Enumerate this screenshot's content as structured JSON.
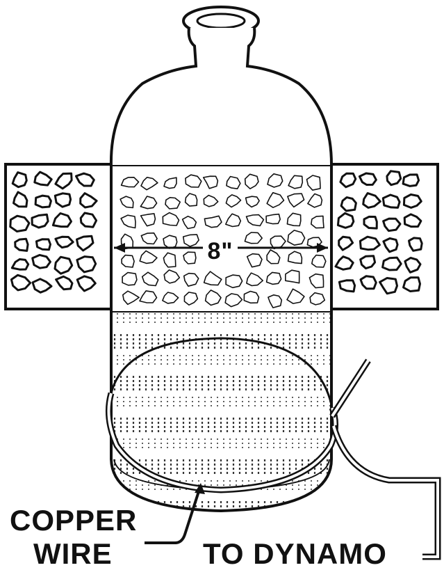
{
  "diagram": {
    "dimension_label": "8\"",
    "labels": {
      "copper_line1": "COPPER",
      "copper_line2": "WIRE",
      "dynamo": "TO DYNAMO"
    }
  },
  "colors": {
    "ink": "#111111",
    "paper": "#ffffff"
  }
}
